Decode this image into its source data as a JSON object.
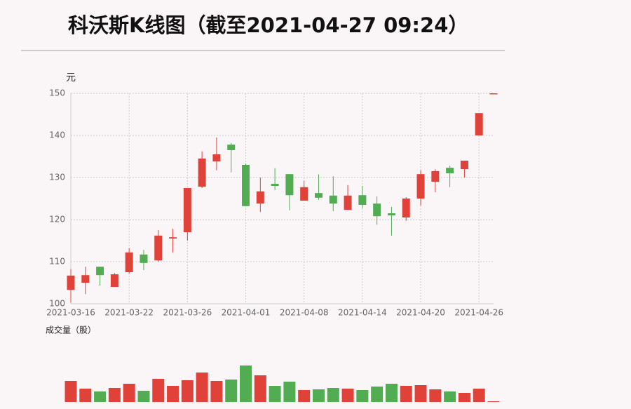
{
  "chart_data": [
    {
      "type": "candlestick",
      "title": "科沃斯K线图（截至2021-04-27 09:24）",
      "y_label": "元",
      "categories": [
        "2021-03-16",
        null,
        null,
        null,
        "2021-03-22",
        null,
        null,
        null,
        "2021-03-26",
        null,
        null,
        null,
        "2021-04-01",
        null,
        null,
        null,
        "2021-04-08",
        null,
        null,
        null,
        "2021-04-14",
        null,
        null,
        null,
        "2021-04-20",
        null,
        null,
        null,
        "2021-04-26",
        null
      ],
      "open": [
        103.3,
        105.0,
        108.8,
        104.0,
        107.5,
        111.7,
        110.3,
        115.5,
        117.0,
        127.8,
        133.8,
        137.8,
        133.0,
        123.8,
        128.5,
        130.8,
        124.5,
        126.3,
        125.7,
        122.3,
        125.8,
        123.8,
        121.5,
        120.5,
        125.0,
        129.0,
        132.3,
        132.0,
        140.0,
        150.0
      ],
      "high": [
        108.2,
        108.8,
        108.8,
        107.3,
        113.2,
        112.8,
        117.5,
        117.8,
        127.5,
        136.2,
        139.5,
        138.2,
        133.3,
        130.0,
        132.2,
        130.8,
        129.2,
        130.7,
        130.3,
        128.2,
        128.0,
        125.5,
        123.0,
        125.3,
        131.7,
        132.0,
        132.8,
        134.0,
        145.3,
        150.0
      ],
      "low": [
        100.3,
        102.3,
        104.3,
        104.0,
        107.2,
        108.0,
        110.0,
        112.2,
        115.0,
        127.5,
        131.7,
        131.2,
        123.2,
        121.8,
        127.0,
        122.2,
        124.5,
        124.7,
        122.0,
        122.3,
        122.7,
        118.8,
        116.2,
        119.7,
        123.3,
        126.5,
        127.7,
        130.0,
        140.0,
        150.0
      ],
      "close": [
        106.7,
        106.8,
        106.8,
        107.0,
        112.2,
        109.7,
        116.2,
        115.8,
        127.5,
        134.5,
        135.5,
        136.5,
        123.2,
        126.7,
        128.0,
        125.8,
        127.7,
        125.2,
        123.8,
        125.7,
        123.5,
        120.8,
        121.0,
        125.0,
        130.8,
        131.5,
        131.0,
        134.0,
        145.3,
        150.0
      ],
      "up_color": "#e0423a",
      "down_color": "#52ad52",
      "ylim": [
        100,
        150
      ],
      "yticks": [
        100,
        110,
        120,
        130,
        140,
        150
      ],
      "grid": true
    },
    {
      "type": "bar",
      "y_label": "成交量（股）",
      "values": [
        30,
        19,
        15,
        20,
        26,
        16,
        33,
        23,
        31,
        42,
        30,
        32,
        52,
        38,
        23,
        29,
        17,
        18,
        20,
        19,
        17,
        22,
        26,
        23,
        24,
        18,
        15,
        13,
        19,
        1
      ]
    }
  ]
}
